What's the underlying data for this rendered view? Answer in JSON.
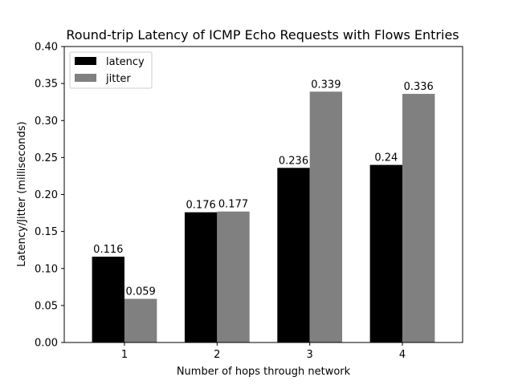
{
  "chart_data": {
    "type": "bar",
    "title": "Round-trip Latency of ICMP Echo Requests with Flows Entries",
    "xlabel": "Number of hops through network",
    "ylabel": "Latency/Jitter (milliseconds)",
    "categories": [
      "1",
      "2",
      "3",
      "4"
    ],
    "ylim": [
      0,
      0.4
    ],
    "yticks": [
      "0.00",
      "0.05",
      "0.10",
      "0.15",
      "0.20",
      "0.25",
      "0.30",
      "0.35",
      "0.40"
    ],
    "grid": false,
    "legend_position": "top-left",
    "series": [
      {
        "name": "latency",
        "color": "#000000",
        "values": [
          0.116,
          0.176,
          0.236,
          0.24
        ],
        "labels": [
          "0.116",
          "0.176",
          "0.236",
          "0.24"
        ]
      },
      {
        "name": "jitter",
        "color": "#808080",
        "values": [
          0.059,
          0.177,
          0.339,
          0.336
        ],
        "labels": [
          "0.059",
          "0.177",
          "0.339",
          "0.336"
        ]
      }
    ]
  }
}
